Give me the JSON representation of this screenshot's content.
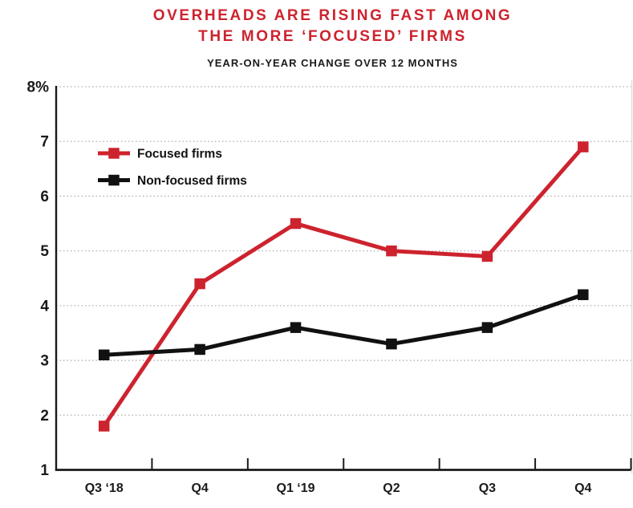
{
  "header": {
    "title_line1": "OVERHEADS ARE RISING FAST AMONG",
    "title_line2": "THE MORE ‘FOCUSED’ FIRMS",
    "subtitle": "YEAR-ON-YEAR CHANGE OVER 12 MONTHS",
    "title_color": "#cd232e"
  },
  "chart_data": {
    "type": "line",
    "title": "OVERHEADS ARE RISING FAST AMONG THE MORE ‘FOCUSED’ FIRMS",
    "subtitle": "YEAR-ON-YEAR CHANGE OVER 12 MONTHS",
    "categories": [
      "Q3 ‘18",
      "Q4",
      "Q1 ‘19",
      "Q2",
      "Q3",
      "Q4"
    ],
    "series": [
      {
        "name": "Focused firms",
        "color": "#cd232e",
        "values": [
          1.8,
          4.4,
          5.5,
          5.0,
          4.9,
          6.9
        ]
      },
      {
        "name": "Non-focused firms",
        "color": "#111111",
        "values": [
          3.1,
          3.2,
          3.6,
          3.3,
          3.6,
          4.2
        ]
      }
    ],
    "y_axis": {
      "min": 1,
      "max": 8,
      "step": 1,
      "tick_labels": [
        "8%",
        "7",
        "6",
        "5",
        "4",
        "3",
        "2",
        "1"
      ]
    },
    "x_axis": {
      "tick_style": "boundary-ticks"
    },
    "ylim": [
      1,
      8
    ],
    "grid": {
      "horizontal": true,
      "style": "dotted",
      "color": "#a9a9a9"
    },
    "legend": {
      "position": "top-left-inside",
      "marker": "square"
    },
    "marker": "square"
  },
  "style_colors": {
    "accent_red": "#cd232e",
    "series_black": "#111111",
    "axis_black": "#1a1a1a",
    "grid_gray": "#a9a9a9",
    "right_border_gray": "#d9d9d9"
  }
}
